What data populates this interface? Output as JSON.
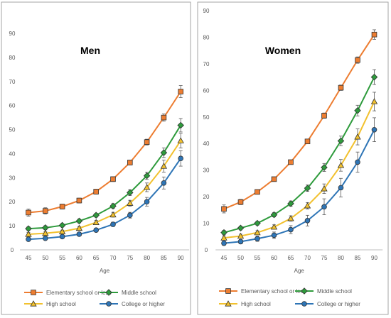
{
  "chart_data": [
    {
      "type": "line",
      "title": "Men",
      "xlabel": "Age",
      "ylabel": "",
      "x": [
        45,
        50,
        55,
        60,
        65,
        70,
        75,
        80,
        85,
        90
      ],
      "ylim": [
        0,
        90
      ],
      "yticks": [
        0,
        10,
        20,
        30,
        40,
        50,
        60,
        70,
        80,
        90
      ],
      "grid": false,
      "legend": "bottom",
      "series": [
        {
          "name": "Elementary school or less",
          "color": "#ED7D31",
          "marker": "square",
          "values": [
            15.5,
            16.2,
            18.0,
            20.5,
            24.2,
            29.4,
            36.3,
            44.8,
            55.0,
            65.8
          ],
          "errors": [
            1.5,
            1.3,
            1.0,
            1.0,
            1.0,
            1.0,
            1.0,
            1.2,
            1.5,
            2.5
          ]
        },
        {
          "name": "Middle school",
          "color": "#2E9B3C",
          "marker": "diamond",
          "values": [
            8.8,
            9.2,
            10.2,
            12.0,
            14.4,
            18.2,
            23.8,
            30.8,
            40.4,
            51.8
          ],
          "errors": [
            0.8,
            0.8,
            0.7,
            0.8,
            0.8,
            1.0,
            1.2,
            1.5,
            2.0,
            2.8
          ]
        },
        {
          "name": "High school",
          "color": "#F2C12E",
          "marker": "triangle",
          "values": [
            6.5,
            6.9,
            7.6,
            9.0,
            11.4,
            14.6,
            19.4,
            26.0,
            34.8,
            45.4
          ],
          "errors": [
            0.7,
            0.7,
            0.6,
            0.7,
            0.8,
            1.0,
            1.2,
            1.8,
            2.5,
            3.0
          ]
        },
        {
          "name": "College or higher",
          "color": "#2E75B6",
          "marker": "circle",
          "values": [
            4.4,
            4.8,
            5.5,
            6.5,
            8.2,
            10.6,
            14.4,
            20.0,
            27.8,
            38.0
          ],
          "errors": [
            0.6,
            0.6,
            0.5,
            0.6,
            0.7,
            0.9,
            1.2,
            1.8,
            2.5,
            3.2
          ]
        }
      ]
    },
    {
      "type": "line",
      "title": "Women",
      "xlabel": "Age",
      "ylabel": "",
      "x": [
        45,
        50,
        55,
        60,
        65,
        70,
        75,
        80,
        85,
        90
      ],
      "ylim": [
        0,
        90
      ],
      "yticks": [
        0,
        10,
        20,
        30,
        40,
        50,
        60,
        70,
        80,
        90
      ],
      "grid": false,
      "legend": "bottom",
      "series": [
        {
          "name": "Elementary school or less",
          "color": "#ED7D31",
          "marker": "square",
          "values": [
            15.4,
            18.0,
            21.8,
            26.6,
            33.0,
            40.8,
            50.5,
            61.0,
            71.4,
            81.0
          ],
          "errors": [
            1.5,
            1.0,
            0.8,
            0.8,
            0.8,
            0.8,
            1.0,
            1.0,
            1.2,
            1.8
          ]
        },
        {
          "name": "Middle school",
          "color": "#2E9B3C",
          "marker": "diamond",
          "values": [
            6.5,
            8.2,
            10.0,
            13.2,
            17.4,
            23.2,
            31.0,
            41.0,
            52.4,
            65.0
          ],
          "errors": [
            0.8,
            0.7,
            0.7,
            0.8,
            1.0,
            1.2,
            1.5,
            1.8,
            2.0,
            2.8
          ]
        },
        {
          "name": "High school",
          "color": "#F2C12E",
          "marker": "triangle",
          "values": [
            4.5,
            5.2,
            6.5,
            8.6,
            11.8,
            16.6,
            23.0,
            31.8,
            42.5,
            55.8
          ],
          "errors": [
            0.8,
            0.7,
            0.7,
            0.8,
            1.0,
            1.2,
            1.8,
            2.2,
            3.0,
            3.5
          ]
        },
        {
          "name": "College or higher",
          "color": "#2E75B6",
          "marker": "circle",
          "values": [
            2.5,
            3.1,
            4.2,
            5.5,
            7.6,
            11.0,
            16.2,
            23.4,
            33.0,
            45.2
          ],
          "errors": [
            0.8,
            0.8,
            1.0,
            1.2,
            1.5,
            2.0,
            3.0,
            3.5,
            3.8,
            4.5
          ]
        }
      ]
    }
  ]
}
